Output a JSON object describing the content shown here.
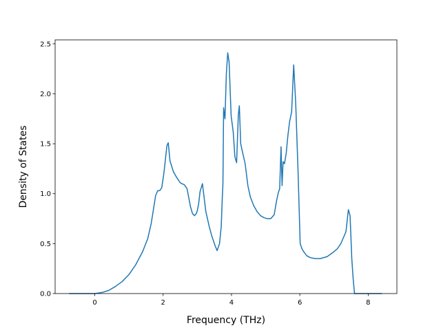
{
  "chart_data": {
    "type": "line",
    "title": "",
    "xlabel": "Frequency (THz)",
    "ylabel": "Density of States",
    "xlim": [
      -1.16,
      8.84
    ],
    "ylim": [
      0.0,
      2.54
    ],
    "xticks": [
      0,
      2,
      4,
      6,
      8
    ],
    "xtick_labels": [
      "0",
      "2",
      "4",
      "6",
      "8"
    ],
    "yticks": [
      0.0,
      0.5,
      1.0,
      1.5,
      2.0,
      2.5
    ],
    "ytick_labels": [
      "0.0",
      "0.5",
      "1.0",
      "1.5",
      "2.0",
      "2.5"
    ],
    "grid": false,
    "legend": false,
    "color": "#1f77b4",
    "series": [
      {
        "x": [
          -0.75,
          -0.4,
          0.0,
          0.2,
          0.4,
          0.6,
          0.8,
          1.0,
          1.2,
          1.4,
          1.55,
          1.65,
          1.72,
          1.78,
          1.84,
          1.9,
          1.96,
          2.02,
          2.06,
          2.11,
          2.15,
          2.2,
          2.3,
          2.4,
          2.5,
          2.55,
          2.62,
          2.7,
          2.8,
          2.86,
          2.92,
          2.97,
          3.0,
          3.04,
          3.08,
          3.15,
          3.25,
          3.35,
          3.42,
          3.46,
          3.52,
          3.58,
          3.65,
          3.7,
          3.73,
          3.75,
          3.77,
          3.81,
          3.85,
          3.89,
          3.93,
          3.99,
          4.05,
          4.1,
          4.15,
          4.2,
          4.23,
          4.27,
          4.32,
          4.4,
          4.48,
          4.55,
          4.65,
          4.75,
          4.85,
          4.95,
          5.05,
          5.15,
          5.25,
          5.32,
          5.37,
          5.41,
          5.45,
          5.48,
          5.51,
          5.55,
          5.6,
          5.65,
          5.7,
          5.76,
          5.82,
          5.88,
          5.95,
          6.01,
          6.06,
          6.11,
          6.2,
          6.3,
          6.45,
          6.6,
          6.8,
          7.0,
          7.1,
          7.2,
          7.3,
          7.35,
          7.42,
          7.47,
          7.52,
          7.56,
          7.6,
          7.64,
          7.68,
          7.75,
          8.0,
          8.4
        ],
        "y": [
          0.0,
          0.0,
          0.0,
          0.01,
          0.03,
          0.07,
          0.12,
          0.19,
          0.29,
          0.42,
          0.55,
          0.7,
          0.85,
          0.98,
          1.03,
          1.03,
          1.06,
          1.2,
          1.32,
          1.48,
          1.51,
          1.33,
          1.22,
          1.16,
          1.11,
          1.1,
          1.09,
          1.05,
          0.87,
          0.8,
          0.78,
          0.8,
          0.83,
          0.9,
          1.02,
          1.1,
          0.82,
          0.67,
          0.58,
          0.54,
          0.48,
          0.43,
          0.5,
          0.67,
          0.95,
          1.1,
          1.86,
          1.75,
          2.2,
          2.41,
          2.32,
          1.78,
          1.62,
          1.37,
          1.31,
          1.79,
          1.88,
          1.5,
          1.42,
          1.3,
          1.08,
          0.97,
          0.88,
          0.82,
          0.78,
          0.76,
          0.75,
          0.75,
          0.79,
          0.93,
          1.01,
          1.05,
          1.47,
          1.08,
          1.32,
          1.3,
          1.4,
          1.58,
          1.72,
          1.82,
          2.29,
          1.9,
          1.2,
          0.5,
          0.45,
          0.42,
          0.38,
          0.36,
          0.35,
          0.35,
          0.37,
          0.42,
          0.45,
          0.5,
          0.58,
          0.62,
          0.84,
          0.78,
          0.35,
          0.15,
          0.0,
          0.0,
          0.0,
          0.0,
          0.0,
          0.0
        ]
      }
    ]
  }
}
